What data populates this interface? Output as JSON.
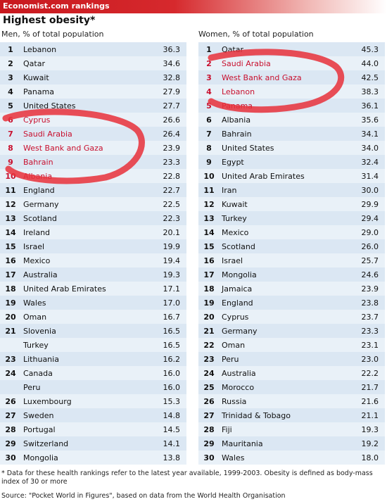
{
  "banner": "Economist.com rankings",
  "title": "Highest obesity*",
  "men": {
    "subtitle": "Men, % of total population",
    "rows": [
      {
        "rank": "1",
        "country": "Lebanon",
        "value": "36.3"
      },
      {
        "rank": "2",
        "country": "Qatar",
        "value": "34.6"
      },
      {
        "rank": "3",
        "country": "Kuwait",
        "value": "32.8"
      },
      {
        "rank": "4",
        "country": "Panama",
        "value": "27.9"
      },
      {
        "rank": "5",
        "country": "United States",
        "value": "27.7"
      },
      {
        "rank": "6",
        "country": "Cyprus",
        "value": "26.6"
      },
      {
        "rank": "7",
        "country": "Saudi Arabia",
        "value": "26.4"
      },
      {
        "rank": "8",
        "country": "West Bank and Gaza",
        "value": "23.9"
      },
      {
        "rank": "9",
        "country": "Bahrain",
        "value": "23.3"
      },
      {
        "rank": "10",
        "country": "Albania",
        "value": "22.8"
      },
      {
        "rank": "11",
        "country": "England",
        "value": "22.7"
      },
      {
        "rank": "12",
        "country": "Germany",
        "value": "22.5"
      },
      {
        "rank": "13",
        "country": "Scotland",
        "value": "22.3"
      },
      {
        "rank": "14",
        "country": "Ireland",
        "value": "20.1"
      },
      {
        "rank": "15",
        "country": "Israel",
        "value": "19.9"
      },
      {
        "rank": "16",
        "country": "Mexico",
        "value": "19.4"
      },
      {
        "rank": "17",
        "country": "Australia",
        "value": "19.3"
      },
      {
        "rank": "18",
        "country": "United Arab Emirates",
        "value": "17.1"
      },
      {
        "rank": "19",
        "country": "Wales",
        "value": "17.0"
      },
      {
        "rank": "20",
        "country": "Oman",
        "value": "16.7"
      },
      {
        "rank": "21",
        "country": "Slovenia",
        "value": "16.5"
      },
      {
        "rank": "",
        "country": "Turkey",
        "value": "16.5"
      },
      {
        "rank": "23",
        "country": "Lithuania",
        "value": "16.2"
      },
      {
        "rank": "24",
        "country": "Canada",
        "value": "16.0"
      },
      {
        "rank": "",
        "country": "Peru",
        "value": "16.0"
      },
      {
        "rank": "26",
        "country": "Luxembourg",
        "value": "15.3"
      },
      {
        "rank": "27",
        "country": "Sweden",
        "value": "14.8"
      },
      {
        "rank": "28",
        "country": "Portugal",
        "value": "14.5"
      },
      {
        "rank": "29",
        "country": "Switzerland",
        "value": "14.1"
      },
      {
        "rank": "30",
        "country": "Mongolia",
        "value": "13.8"
      }
    ]
  },
  "women": {
    "subtitle": "Women, % of total population",
    "rows": [
      {
        "rank": "1",
        "country": "Qatar",
        "value": "45.3"
      },
      {
        "rank": "2",
        "country": "Saudi Arabia",
        "value": "44.0"
      },
      {
        "rank": "3",
        "country": "West Bank and Gaza",
        "value": "42.5"
      },
      {
        "rank": "4",
        "country": "Lebanon",
        "value": "38.3"
      },
      {
        "rank": "5",
        "country": "Panama",
        "value": "36.1"
      },
      {
        "rank": "6",
        "country": "Albania",
        "value": "35.6"
      },
      {
        "rank": "7",
        "country": "Bahrain",
        "value": "34.1"
      },
      {
        "rank": "8",
        "country": "United States",
        "value": "34.0"
      },
      {
        "rank": "9",
        "country": "Egypt",
        "value": "32.4"
      },
      {
        "rank": "10",
        "country": "United Arab Emirates",
        "value": "31.4"
      },
      {
        "rank": "11",
        "country": "Iran",
        "value": "30.0"
      },
      {
        "rank": "12",
        "country": "Kuwait",
        "value": "29.9"
      },
      {
        "rank": "13",
        "country": "Turkey",
        "value": "29.4"
      },
      {
        "rank": "14",
        "country": "Mexico",
        "value": "29.0"
      },
      {
        "rank": "15",
        "country": "Scotland",
        "value": "26.0"
      },
      {
        "rank": "16",
        "country": "Israel",
        "value": "25.7"
      },
      {
        "rank": "17",
        "country": "Mongolia",
        "value": "24.6"
      },
      {
        "rank": "18",
        "country": "Jamaica",
        "value": "23.9"
      },
      {
        "rank": "19",
        "country": "England",
        "value": "23.8"
      },
      {
        "rank": "20",
        "country": "Cyprus",
        "value": "23.7"
      },
      {
        "rank": "21",
        "country": "Germany",
        "value": "23.3"
      },
      {
        "rank": "22",
        "country": "Oman",
        "value": "23.1"
      },
      {
        "rank": "23",
        "country": "Peru",
        "value": "23.0"
      },
      {
        "rank": "24",
        "country": "Australia",
        "value": "22.2"
      },
      {
        "rank": "25",
        "country": "Morocco",
        "value": "21.7"
      },
      {
        "rank": "26",
        "country": "Russia",
        "value": "21.6"
      },
      {
        "rank": "27",
        "country": "Trinidad & Tobago",
        "value": "21.1"
      },
      {
        "rank": "28",
        "country": "Fiji",
        "value": "19.3"
      },
      {
        "rank": "29",
        "country": "Mauritania",
        "value": "19.2"
      },
      {
        "rank": "30",
        "country": "Wales",
        "value": "18.0"
      }
    ]
  },
  "footnote": "* Data for these health rankings refer to the latest year available, 1999-2003. Obesity is defined as body-mass index of 30 or more",
  "source": "Source: \"Pocket World in Figures\", based on data from the World Health Organisation",
  "colors": {
    "banner": "#c8181e",
    "row_odd": "#dbe7f3",
    "row_even": "#e9f1f8",
    "highlight_text": "#c8102e",
    "marker": "#e8303a"
  },
  "highlighted": {
    "men": [
      "Cyprus",
      "Saudi Arabia",
      "West Bank and Gaza",
      "Bahrain",
      "Albania"
    ],
    "women": [
      "Saudi Arabia",
      "West Bank and Gaza",
      "Lebanon",
      "Panama"
    ]
  },
  "chart_data": {
    "type": "table",
    "title": "Highest obesity*",
    "tables": [
      {
        "name": "Men, % of total population",
        "columns": [
          "rank",
          "country",
          "value"
        ]
      },
      {
        "name": "Women, % of total population",
        "columns": [
          "rank",
          "country",
          "value"
        ]
      }
    ]
  }
}
